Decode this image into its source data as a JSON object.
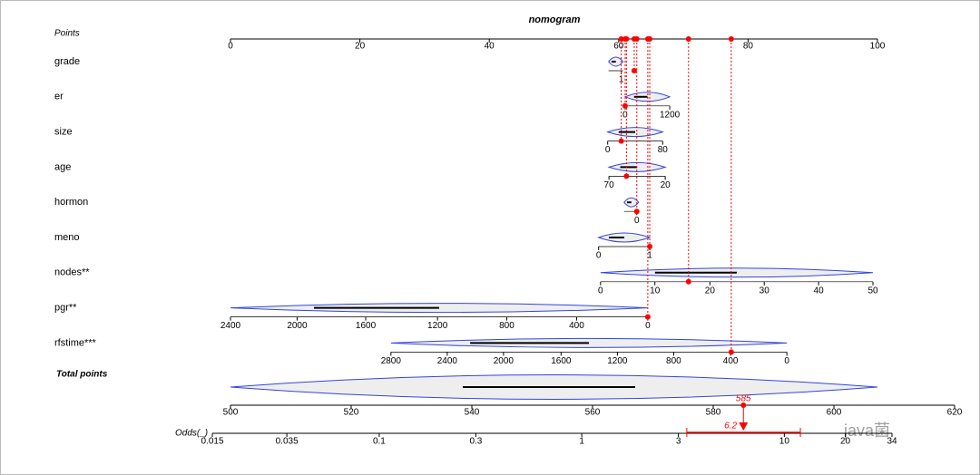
{
  "chart_data": {
    "type": "nomogram",
    "title": "nomogram",
    "points_axis": {
      "label": "Points",
      "xlim": [
        0,
        100
      ],
      "xticks": [
        0,
        20,
        40,
        60,
        80,
        100
      ]
    },
    "rows": [
      {
        "label": "grade",
        "ticks": [
          1
        ],
        "tick_points": [
          60.4
        ],
        "points": 62.4
      },
      {
        "label": "er",
        "ticks": [
          0,
          1200
        ],
        "tick_points": [
          61.0,
          67.9
        ],
        "points": 61.0
      },
      {
        "label": "size",
        "ticks": [
          0,
          80
        ],
        "tick_points": [
          58.3,
          66.8
        ],
        "points": 60.4
      },
      {
        "label": "age",
        "ticks": [
          70,
          20
        ],
        "tick_points": [
          58.5,
          67.2
        ],
        "points": 61.2
      },
      {
        "label": "hormon",
        "ticks": [
          0
        ],
        "tick_points": [
          62.8
        ],
        "points": 62.8
      },
      {
        "label": "meno",
        "ticks": [
          0,
          1
        ],
        "tick_points": [
          56.9,
          64.8
        ],
        "points": 64.8
      },
      {
        "label": "nodes**",
        "ticks": [
          0,
          10,
          20,
          30,
          40,
          50
        ],
        "tick_points": [
          57.2,
          65.6,
          74.1,
          82.5,
          90.9,
          99.3
        ],
        "points": 70.8
      },
      {
        "label": "pgr**",
        "ticks": [
          2400,
          2000,
          1600,
          1200,
          800,
          400,
          0
        ],
        "tick_points": [
          0,
          10.3,
          20.9,
          32.0,
          42.7,
          53.5,
          64.5
        ],
        "points": 64.5
      },
      {
        "label": "rfstime***",
        "ticks": [
          2800,
          2400,
          2000,
          1600,
          1200,
          800,
          400,
          0
        ],
        "tick_points": [
          24.8,
          33.5,
          42.2,
          51.1,
          59.8,
          68.5,
          77.3,
          86.0
        ],
        "points": 77.4
      }
    ],
    "total_points": {
      "label": "Total points",
      "xlim": [
        500,
        620
      ],
      "xticks": [
        500,
        520,
        540,
        560,
        580,
        600,
        620
      ],
      "value": 585
    },
    "odds": {
      "label": "Odds(_)",
      "log": true,
      "xlim": [
        0.015,
        34
      ],
      "xticks": [
        0.015,
        0.035,
        0.1,
        0.3,
        1,
        3,
        10,
        20,
        34
      ],
      "value": 6.2,
      "ci": [
        3.3,
        12
      ]
    },
    "watermark": "java菌"
  }
}
